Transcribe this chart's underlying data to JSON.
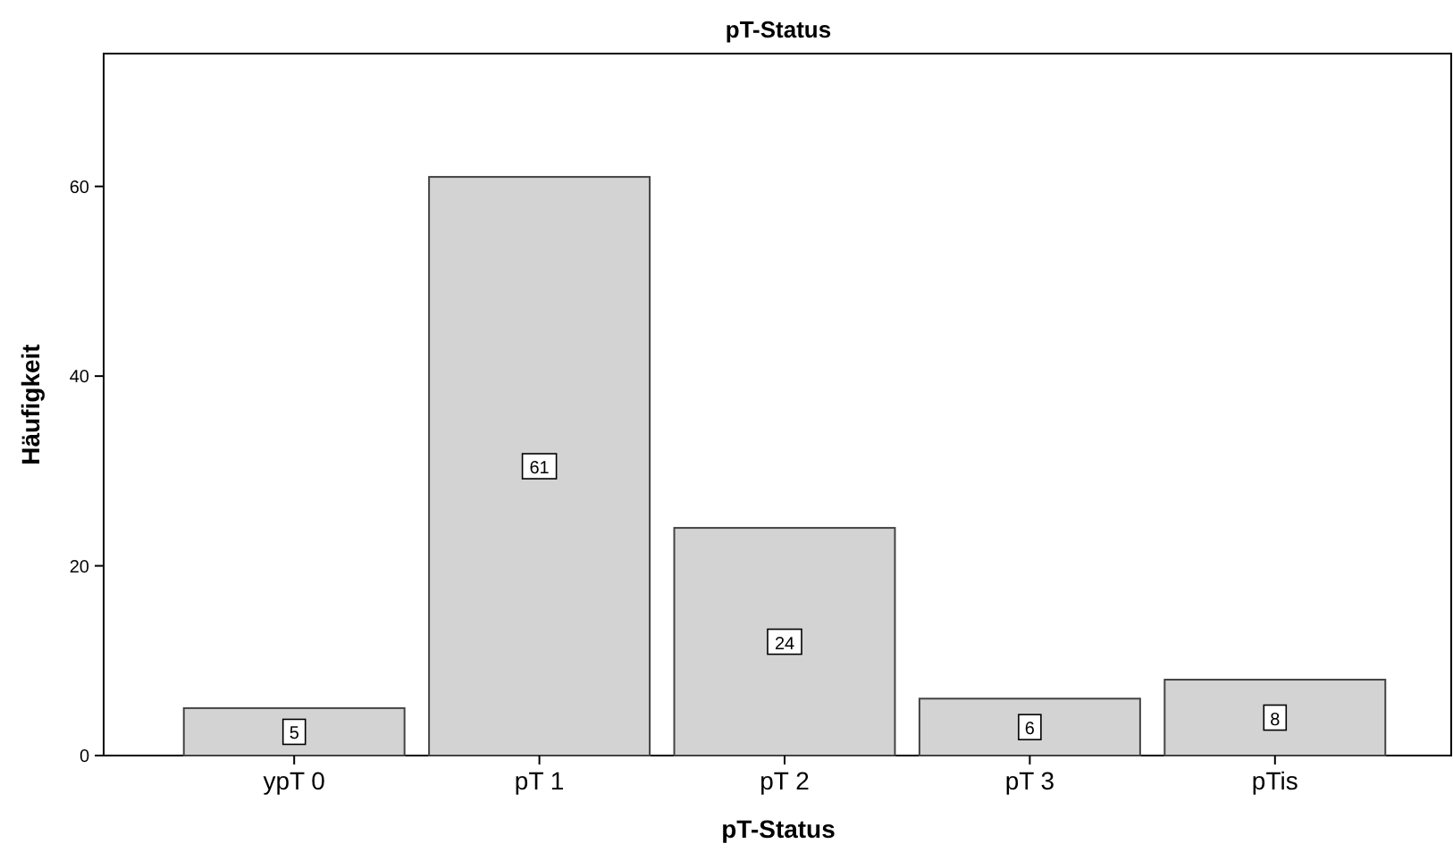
{
  "chart_data": {
    "type": "bar",
    "title": "pT-Status",
    "xlabel": "pT-Status",
    "ylabel": "Häufigkeit",
    "categories": [
      "ypT 0",
      "pT 1",
      "pT 2",
      "pT 3",
      "pTis"
    ],
    "values": [
      5,
      61,
      24,
      6,
      8
    ],
    "color": "#d3d3d3",
    "ylim": [
      0,
      74
    ],
    "yticks": [
      0,
      20,
      40,
      60
    ],
    "grid": false,
    "data_labels": true
  }
}
